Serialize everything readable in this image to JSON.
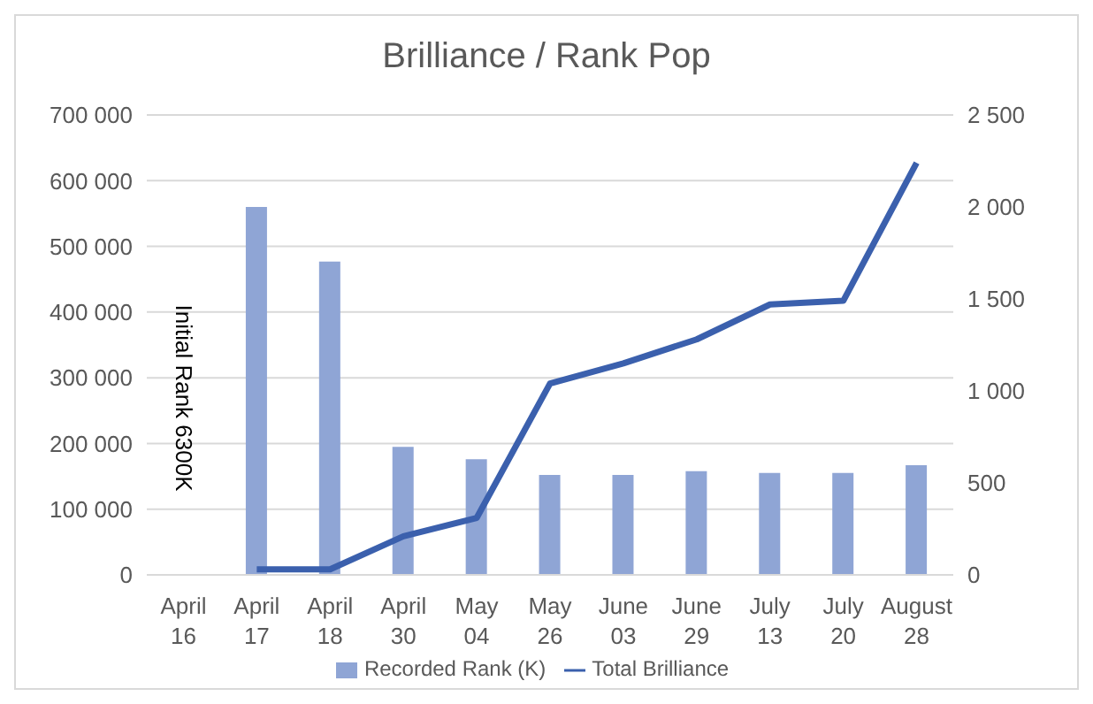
{
  "chart_data": {
    "type": "bar",
    "title": "Brilliance / Rank Pop",
    "categories": [
      "April 16",
      "April 17",
      "April 18",
      "April 30",
      "May 04",
      "May 26",
      "June 03",
      "June 29",
      "July 13",
      "July 20",
      "August 28"
    ],
    "series": [
      {
        "name": "Recorded Rank (K)",
        "color": "#8fa5d5",
        "values": [
          null,
          560000,
          477000,
          195000,
          176000,
          152000,
          152000,
          158000,
          155000,
          155000,
          167000
        ]
      },
      {
        "name": "Total Brilliance",
        "type": "line",
        "axis": "y2",
        "color": "#3b60ad",
        "values": [
          null,
          30,
          30,
          210,
          310,
          1040,
          1150,
          1280,
          1470,
          1490,
          2240
        ]
      }
    ],
    "ylim": [
      0,
      700000
    ],
    "yticks": [
      0,
      {
        "value": 100000,
        "label": "100 000"
      },
      {
        "value": 200000,
        "label": "200 000"
      },
      {
        "value": 300000,
        "label": "300 000"
      },
      {
        "value": 400000,
        "label": "400 000"
      },
      {
        "value": 500000,
        "label": "500 000"
      },
      {
        "value": 600000,
        "label": "600 000"
      },
      {
        "value": 700000,
        "label": "700 000"
      }
    ],
    "y2lim": [
      0,
      2500
    ],
    "y2ticks": [
      0,
      500,
      {
        "value": 1000,
        "label": "1 000"
      },
      {
        "value": 1500,
        "label": "1 500"
      },
      {
        "value": 2000,
        "label": "2 000"
      },
      {
        "value": 2500,
        "label": "2 500"
      }
    ],
    "annotations": [
      "Initial Rank 6300K"
    ],
    "grid": "y",
    "legend": "bottom",
    "marker": "none",
    "line_style": "solid"
  }
}
